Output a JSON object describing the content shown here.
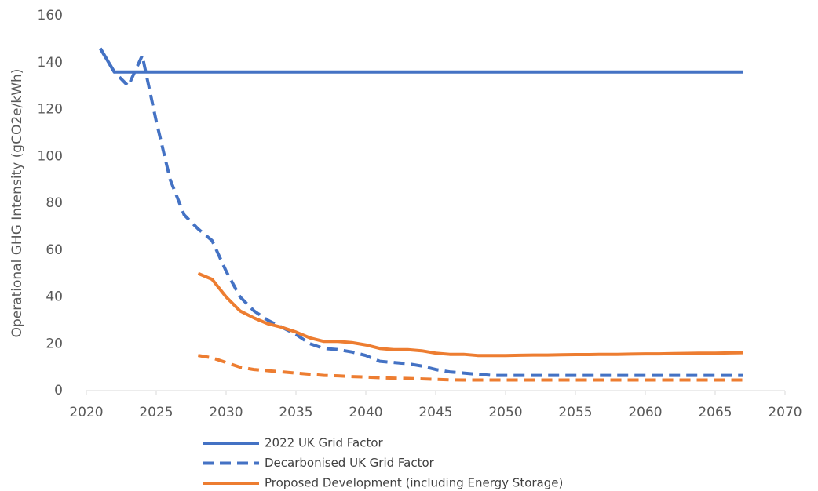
{
  "chart_data": {
    "type": "line",
    "y_label": "Operational GHG Intensity (gCO2e/kWh)",
    "x": [
      2021,
      2022,
      2023,
      2024,
      2025,
      2026,
      2027,
      2028,
      2029,
      2030,
      2031,
      2032,
      2033,
      2034,
      2035,
      2036,
      2037,
      2038,
      2039,
      2040,
      2041,
      2042,
      2043,
      2044,
      2045,
      2046,
      2047,
      2048,
      2049,
      2050,
      2051,
      2052,
      2053,
      2054,
      2055,
      2056,
      2057,
      2058,
      2059,
      2060,
      2061,
      2062,
      2063,
      2064,
      2065,
      2066,
      2067
    ],
    "series": [
      {
        "name": "2022 UK Grid Factor",
        "color": "#4472c4",
        "dash": false,
        "values": [
          146,
          136,
          136,
          136,
          136,
          136,
          136,
          136,
          136,
          136,
          136,
          136,
          136,
          136,
          136,
          136,
          136,
          136,
          136,
          136,
          136,
          136,
          136,
          136,
          136,
          136,
          136,
          136,
          136,
          136,
          136,
          136,
          136,
          136,
          136,
          136,
          136,
          136,
          136,
          136,
          136,
          136,
          136,
          136,
          136,
          136,
          136
        ]
      },
      {
        "name": "Decarbonised UK Grid Factor",
        "color": "#4472c4",
        "dash": true,
        "values": [
          146,
          136,
          130,
          143,
          115,
          90,
          75,
          69,
          64,
          51,
          40,
          34,
          30,
          27,
          24,
          20,
          18,
          17.5,
          16.5,
          15,
          12.5,
          12,
          11.5,
          10.5,
          9,
          8,
          7.5,
          7,
          6.5,
          6.5,
          6.5,
          6.5,
          6.5,
          6.5,
          6.5,
          6.5,
          6.5,
          6.5,
          6.5,
          6.5,
          6.5,
          6.5,
          6.5,
          6.5,
          6.5,
          6.5,
          6.5
        ]
      },
      {
        "name": "Proposed Development (including Energy Storage)",
        "color": "#ed7d31",
        "dash": false,
        "values": [
          null,
          null,
          null,
          null,
          null,
          null,
          null,
          50,
          47.5,
          40,
          34,
          31,
          28.5,
          27,
          25,
          22.5,
          21,
          21,
          20.5,
          19.5,
          18,
          17.5,
          17.5,
          17,
          16,
          15.5,
          15.5,
          15,
          15,
          15,
          15.1,
          15.2,
          15.2,
          15.3,
          15.4,
          15.4,
          15.5,
          15.5,
          15.6,
          15.7,
          15.7,
          15.8,
          15.9,
          16,
          16,
          16.1,
          16.2
        ]
      },
      {
        "color": "#ed7d31",
        "dash": true,
        "values": [
          null,
          null,
          null,
          null,
          null,
          null,
          null,
          15,
          14,
          12,
          10,
          9,
          8.5,
          8,
          7.5,
          7,
          6.5,
          6.3,
          6,
          5.8,
          5.5,
          5.3,
          5.2,
          5,
          4.8,
          4.6,
          4.5,
          4.5,
          4.5,
          4.5,
          4.5,
          4.5,
          4.5,
          4.5,
          4.5,
          4.5,
          4.5,
          4.5,
          4.5,
          4.5,
          4.5,
          4.5,
          4.5,
          4.5,
          4.5,
          4.5,
          4.5
        ]
      }
    ],
    "xlim": [
      2020,
      2070
    ],
    "xticks": [
      2020,
      2025,
      2030,
      2035,
      2040,
      2045,
      2050,
      2055,
      2060,
      2065,
      2070
    ],
    "ylim": [
      0,
      160
    ],
    "yticks": [
      0,
      20,
      40,
      60,
      80,
      100,
      120,
      140,
      160
    ],
    "grid": false,
    "legend": "bottom"
  }
}
